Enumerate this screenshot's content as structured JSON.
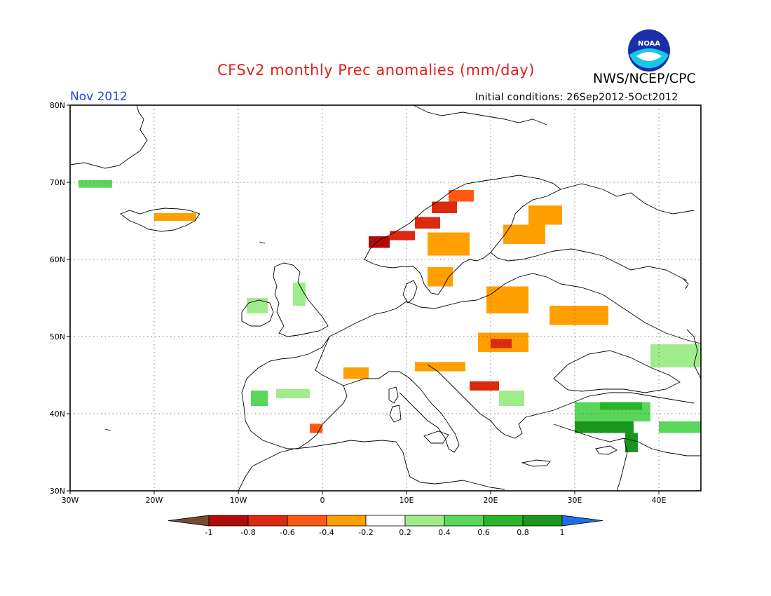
{
  "header": {
    "title": "CFSv2 monthly Prec anomalies (mm/day)",
    "agency": "NWS/NCEP/CPC",
    "logo_text": "NOAA",
    "month": "Nov 2012",
    "initial_conditions": "Initial conditions: 26Sep2012-5Oct2012"
  },
  "map": {
    "lon_range": [
      -30,
      45
    ],
    "lat_range": [
      30,
      80
    ],
    "lon_ticks": [
      {
        "value": -30,
        "label": "30W"
      },
      {
        "value": -20,
        "label": "20W"
      },
      {
        "value": -10,
        "label": "10W"
      },
      {
        "value": 0,
        "label": "0"
      },
      {
        "value": 10,
        "label": "10E"
      },
      {
        "value": 20,
        "label": "20E"
      },
      {
        "value": 30,
        "label": "30E"
      },
      {
        "value": 40,
        "label": "40E"
      }
    ],
    "lat_ticks": [
      {
        "value": 30,
        "label": "30N"
      },
      {
        "value": 40,
        "label": "40N"
      },
      {
        "value": 50,
        "label": "50N"
      },
      {
        "value": 60,
        "label": "60N"
      },
      {
        "value": 70,
        "label": "70N"
      },
      {
        "value": 80,
        "label": "80N"
      }
    ],
    "anomaly_regions": [
      {
        "name": "norway-coast-dry-1",
        "lon": 5.5,
        "lat": 61.5,
        "dlon": 2.5,
        "dlat": 1.5,
        "value": -0.9
      },
      {
        "name": "norway-coast-dry-2",
        "lon": 8,
        "lat": 62.5,
        "dlon": 3,
        "dlat": 1.2,
        "value": -0.7
      },
      {
        "name": "norway-coast-dry-3",
        "lon": 11,
        "lat": 64,
        "dlon": 3,
        "dlat": 1.5,
        "value": -0.7
      },
      {
        "name": "norway-coast-dry-4",
        "lon": 13,
        "lat": 66,
        "dlon": 3,
        "dlat": 1.5,
        "value": -0.6
      },
      {
        "name": "norway-coast-dry-5",
        "lon": 15,
        "lat": 67.5,
        "dlon": 3,
        "dlat": 1.5,
        "value": -0.5
      },
      {
        "name": "scandinavia-dry",
        "lon": 12.5,
        "lat": 60.5,
        "dlon": 5,
        "dlat": 3,
        "value": -0.3
      },
      {
        "name": "finland-dry",
        "lon": 21.5,
        "lat": 62,
        "dlon": 5,
        "dlat": 2.5,
        "value": -0.3
      },
      {
        "name": "finland-dry-2",
        "lon": 24.5,
        "lat": 64.5,
        "dlon": 4,
        "dlat": 2.5,
        "value": -0.3
      },
      {
        "name": "sweden-south-dry",
        "lon": 12.5,
        "lat": 56.5,
        "dlon": 3,
        "dlat": 2.5,
        "value": -0.3
      },
      {
        "name": "poland-dry",
        "lon": 19.5,
        "lat": 53,
        "dlon": 5,
        "dlat": 3.5,
        "value": -0.3
      },
      {
        "name": "ukraine-dry",
        "lon": 27,
        "lat": 51.5,
        "dlon": 7,
        "dlat": 2.5,
        "value": -0.3
      },
      {
        "name": "hungary-dry",
        "lon": 18.5,
        "lat": 48,
        "dlon": 6,
        "dlat": 2.5,
        "value": -0.3
      },
      {
        "name": "carpathian-dry-core",
        "lon": 20,
        "lat": 48.5,
        "dlon": 2.5,
        "dlat": 1.2,
        "value": -0.7
      },
      {
        "name": "alps-dry",
        "lon": 11,
        "lat": 45.5,
        "dlon": 6,
        "dlat": 1.2,
        "value": -0.3
      },
      {
        "name": "france-south-dry",
        "lon": 2.5,
        "lat": 44.5,
        "dlon": 3,
        "dlat": 1.5,
        "value": -0.3
      },
      {
        "name": "balkan-dry",
        "lon": 17.5,
        "lat": 43,
        "dlon": 3.5,
        "dlat": 1.2,
        "value": -0.7
      },
      {
        "name": "iceland-dry",
        "lon": -20,
        "lat": 65,
        "dlon": 5,
        "dlat": 1,
        "value": -0.3
      },
      {
        "name": "spain-east-dry",
        "lon": -1.5,
        "lat": 37.5,
        "dlon": 1.5,
        "dlat": 1.2,
        "value": -0.5
      },
      {
        "name": "greenland-wet",
        "lon": -29,
        "lat": 69.3,
        "dlon": 4,
        "dlat": 1,
        "value": 0.5
      },
      {
        "name": "ireland-wet",
        "lon": -9,
        "lat": 53,
        "dlon": 2.5,
        "dlat": 2,
        "value": 0.3
      },
      {
        "name": "uk-wet",
        "lon": -3.5,
        "lat": 54,
        "dlon": 1.5,
        "dlat": 3,
        "value": 0.3
      },
      {
        "name": "portugal-wet",
        "lon": -8.5,
        "lat": 41,
        "dlon": 2,
        "dlat": 2,
        "value": 0.5
      },
      {
        "name": "spain-north-wet",
        "lon": -5.5,
        "lat": 42,
        "dlon": 4,
        "dlat": 1.2,
        "value": 0.3
      },
      {
        "name": "turkey-wet",
        "lon": 30,
        "lat": 39,
        "dlon": 9,
        "dlat": 2.5,
        "value": 0.5
      },
      {
        "name": "turkey-wet-core",
        "lon": 33,
        "lat": 40.5,
        "dlon": 5,
        "dlat": 1,
        "value": 0.7
      },
      {
        "name": "turkey-south-very-wet",
        "lon": 30,
        "lat": 37.5,
        "dlon": 7,
        "dlat": 1.5,
        "value": 1.0
      },
      {
        "name": "levant-very-wet",
        "lon": 36,
        "lat": 35,
        "dlon": 1.5,
        "dlat": 2.5,
        "value": 1.0
      },
      {
        "name": "caucasus-wet",
        "lon": 39,
        "lat": 46,
        "dlon": 6,
        "dlat": 3,
        "value": 0.3
      },
      {
        "name": "greece-wet",
        "lon": 21,
        "lat": 41,
        "dlon": 3,
        "dlat": 2,
        "value": 0.3
      },
      {
        "name": "east-turkey-wet",
        "lon": 40,
        "lat": 37.5,
        "dlon": 5,
        "dlat": 1.5,
        "value": 0.5
      }
    ]
  },
  "colorbar": {
    "labels": [
      "-1",
      "-0.8",
      "-0.6",
      "-0.4",
      "-0.2",
      "0.2",
      "0.4",
      "0.6",
      "0.8",
      "1"
    ],
    "colors": [
      "#7a4a2e",
      "#b20a0a",
      "#dc2a10",
      "#ff5a14",
      "#ffa000",
      "#ffffff",
      "#a0ec8c",
      "#5ad75a",
      "#28b428",
      "#18961e",
      "#1e6ee6"
    ]
  }
}
